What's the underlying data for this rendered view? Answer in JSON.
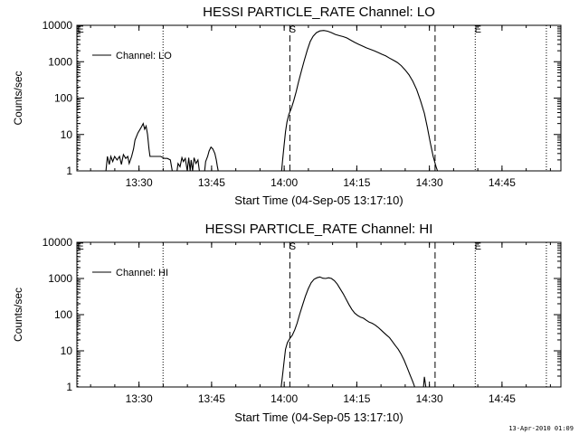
{
  "footer": {
    "timestamp": "13-Apr-2010 01:09"
  },
  "chart_data": [
    {
      "type": "line",
      "title": "HESSI PARTICLE_RATE Channel: LO",
      "xlabel": "Start Time (04-Sep-05 13:17:10)",
      "ylabel": "Counts/sec",
      "x_unit": "minutes since 13:17:10",
      "xlim": [
        0,
        100
      ],
      "ylim": [
        1,
        10000
      ],
      "yscale": "log",
      "x_ticks": [
        {
          "x": 12.83,
          "label": "13:30"
        },
        {
          "x": 27.83,
          "label": "13:45"
        },
        {
          "x": 42.83,
          "label": "14:00"
        },
        {
          "x": 57.83,
          "label": "14:15"
        },
        {
          "x": 72.83,
          "label": "14:30"
        },
        {
          "x": 87.83,
          "label": "14:45"
        }
      ],
      "y_ticks": [
        {
          "y": 1,
          "label": "1"
        },
        {
          "y": 10,
          "label": "10"
        },
        {
          "y": 100,
          "label": "100"
        },
        {
          "y": 1000,
          "label": "1000"
        },
        {
          "y": 10000,
          "label": "10000"
        }
      ],
      "legend": {
        "position": "top-left",
        "entries": [
          "Channel: LO"
        ]
      },
      "grid": false,
      "markers": [
        {
          "x": 0.2,
          "style": "dotted",
          "label": "E"
        },
        {
          "x": 17.8,
          "style": "dotted",
          "label": ""
        },
        {
          "x": 44.0,
          "style": "dashed",
          "label": "S"
        },
        {
          "x": 74.0,
          "style": "dashed",
          "label": ""
        },
        {
          "x": 82.3,
          "style": "dotted",
          "label": "E"
        },
        {
          "x": 97.0,
          "style": "dotted",
          "label": ""
        }
      ],
      "series": [
        {
          "name": "Channel: LO",
          "segments": [
            [
              [
                6.0,
                1
              ],
              [
                6.3,
                2.5
              ],
              [
                6.7,
                1.5
              ],
              [
                7.0,
                2.5
              ],
              [
                7.4,
                1.8
              ],
              [
                7.8,
                2.5
              ],
              [
                8.3,
                2.0
              ],
              [
                8.8,
                2.5
              ],
              [
                9.2,
                1.5
              ],
              [
                9.6,
                2.8
              ],
              [
                10.1,
                2.2
              ],
              [
                10.5,
                2.5
              ],
              [
                10.8,
                1.6
              ],
              [
                11.3,
                2.5
              ],
              [
                11.7,
                4
              ],
              [
                12.0,
                7
              ],
              [
                12.6,
                11
              ],
              [
                13.2,
                15
              ],
              [
                13.7,
                20
              ],
              [
                14.0,
                14
              ],
              [
                14.3,
                17
              ],
              [
                14.6,
                10
              ],
              [
                14.9,
                4
              ],
              [
                15.1,
                2.5
              ],
              [
                15.8,
                2.5
              ],
              [
                16.6,
                2.5
              ],
              [
                17.3,
                2.5
              ],
              [
                18.1,
                2.2
              ],
              [
                18.7,
                2.2
              ],
              [
                19.3,
                2.0
              ],
              [
                19.7,
                1
              ]
            ],
            [
              [
                20.7,
                1
              ],
              [
                20.9,
                1.6
              ],
              [
                21.3,
                1.3
              ],
              [
                21.7,
                2.3
              ],
              [
                22.0,
                1.8
              ],
              [
                22.4,
                2.2
              ],
              [
                22.8,
                1
              ],
              [
                23.1,
                2.3
              ],
              [
                23.4,
                1
              ],
              [
                23.6,
                2.0
              ],
              [
                23.9,
                1
              ],
              [
                24.2,
                2.3
              ],
              [
                24.6,
                1.6
              ],
              [
                25.0,
                2.0
              ],
              [
                25.3,
                1
              ]
            ],
            [
              [
                26.4,
                1
              ],
              [
                26.6,
                1.8
              ],
              [
                27.0,
                2.5
              ],
              [
                27.3,
                3.5
              ],
              [
                27.7,
                4.5
              ],
              [
                28.1,
                4
              ],
              [
                28.5,
                3
              ],
              [
                28.8,
                2
              ],
              [
                29.0,
                1.4
              ],
              [
                29.2,
                1
              ]
            ],
            [
              [
                42.3,
                1
              ],
              [
                42.5,
                2
              ],
              [
                42.8,
                5
              ],
              [
                43.1,
                12
              ],
              [
                43.4,
                22
              ],
              [
                43.8,
                36
              ],
              [
                44.3,
                52
              ],
              [
                44.8,
                85
              ],
              [
                45.3,
                150
              ],
              [
                45.8,
                280
              ],
              [
                46.4,
                560
              ],
              [
                47.0,
                1100
              ],
              [
                47.6,
                2100
              ],
              [
                48.2,
                3600
              ],
              [
                48.8,
                5000
              ],
              [
                49.5,
                6300
              ],
              [
                50.2,
                7000
              ],
              [
                51.0,
                7200
              ],
              [
                51.8,
                6900
              ],
              [
                52.6,
                6300
              ],
              [
                53.4,
                5600
              ],
              [
                54.2,
                5200
              ],
              [
                55.0,
                4900
              ],
              [
                55.8,
                4500
              ],
              [
                56.6,
                3900
              ],
              [
                57.4,
                3400
              ],
              [
                58.2,
                3000
              ],
              [
                59.0,
                2700
              ],
              [
                59.8,
                2400
              ],
              [
                60.6,
                2200
              ],
              [
                61.4,
                2000
              ],
              [
                62.2,
                1800
              ],
              [
                63.0,
                1600
              ],
              [
                63.8,
                1450
              ],
              [
                64.6,
                1250
              ],
              [
                65.4,
                1100
              ],
              [
                66.2,
                950
              ],
              [
                67.0,
                780
              ],
              [
                67.8,
                600
              ],
              [
                68.6,
                440
              ],
              [
                69.4,
                290
              ],
              [
                70.2,
                170
              ],
              [
                71.0,
                85
              ],
              [
                71.8,
                38
              ],
              [
                72.4,
                16
              ],
              [
                73.0,
                6
              ],
              [
                73.6,
                2.5
              ],
              [
                74.2,
                1.3
              ],
              [
                74.5,
                1
              ]
            ]
          ]
        }
      ]
    },
    {
      "type": "line",
      "title": "HESSI PARTICLE_RATE Channel: HI",
      "xlabel": "Start Time (04-Sep-05 13:17:10)",
      "ylabel": "Counts/sec",
      "x_unit": "minutes since 13:17:10",
      "xlim": [
        0,
        100
      ],
      "ylim": [
        1,
        10000
      ],
      "yscale": "log",
      "x_ticks": [
        {
          "x": 12.83,
          "label": "13:30"
        },
        {
          "x": 27.83,
          "label": "13:45"
        },
        {
          "x": 42.83,
          "label": "14:00"
        },
        {
          "x": 57.83,
          "label": "14:15"
        },
        {
          "x": 72.83,
          "label": "14:30"
        },
        {
          "x": 87.83,
          "label": "14:45"
        }
      ],
      "y_ticks": [
        {
          "y": 1,
          "label": "1"
        },
        {
          "y": 10,
          "label": "10"
        },
        {
          "y": 100,
          "label": "100"
        },
        {
          "y": 1000,
          "label": "1000"
        },
        {
          "y": 10000,
          "label": "10000"
        }
      ],
      "legend": {
        "position": "top-left",
        "entries": [
          "Channel: HI"
        ]
      },
      "grid": false,
      "markers": [
        {
          "x": 0.2,
          "style": "dotted",
          "label": "E"
        },
        {
          "x": 17.8,
          "style": "dotted",
          "label": ""
        },
        {
          "x": 44.0,
          "style": "dashed",
          "label": "S"
        },
        {
          "x": 74.0,
          "style": "dashed",
          "label": ""
        },
        {
          "x": 82.3,
          "style": "dotted",
          "label": "E"
        },
        {
          "x": 97.0,
          "style": "dotted",
          "label": ""
        }
      ],
      "series": [
        {
          "name": "Channel: HI",
          "segments": [
            [
              [
                42.2,
                1
              ],
              [
                42.5,
                2.2
              ],
              [
                42.8,
                5
              ],
              [
                43.1,
                11
              ],
              [
                43.5,
                17
              ],
              [
                44.0,
                22
              ],
              [
                44.5,
                27
              ],
              [
                45.0,
                38
              ],
              [
                45.5,
                58
              ],
              [
                46.0,
                100
              ],
              [
                46.6,
                180
              ],
              [
                47.2,
                320
              ],
              [
                47.8,
                520
              ],
              [
                48.4,
                760
              ],
              [
                49.0,
                950
              ],
              [
                49.6,
                1050
              ],
              [
                50.2,
                1100
              ],
              [
                50.8,
                1020
              ],
              [
                51.4,
                1000
              ],
              [
                52.0,
                1050
              ],
              [
                52.6,
                1000
              ],
              [
                53.2,
                870
              ],
              [
                53.8,
                700
              ],
              [
                54.4,
                520
              ],
              [
                55.0,
                380
              ],
              [
                55.6,
                270
              ],
              [
                56.2,
                190
              ],
              [
                56.8,
                140
              ],
              [
                57.4,
                110
              ],
              [
                58.0,
                95
              ],
              [
                58.6,
                85
              ],
              [
                59.2,
                80
              ],
              [
                59.8,
                70
              ],
              [
                60.4,
                62
              ],
              [
                61.0,
                58
              ],
              [
                61.6,
                52
              ],
              [
                62.2,
                45
              ],
              [
                62.8,
                38
              ],
              [
                63.4,
                32
              ],
              [
                64.0,
                27
              ],
              [
                64.6,
                23
              ],
              [
                65.2,
                18
              ],
              [
                65.8,
                14
              ],
              [
                66.4,
                11
              ],
              [
                67.0,
                8
              ],
              [
                67.6,
                5.5
              ],
              [
                68.2,
                3.5
              ],
              [
                68.8,
                2.2
              ],
              [
                69.4,
                1.4
              ],
              [
                69.8,
                1
              ]
            ],
            [
              [
                71.6,
                1
              ],
              [
                71.8,
                1.9
              ],
              [
                72.1,
                1
              ]
            ]
          ]
        }
      ]
    }
  ]
}
